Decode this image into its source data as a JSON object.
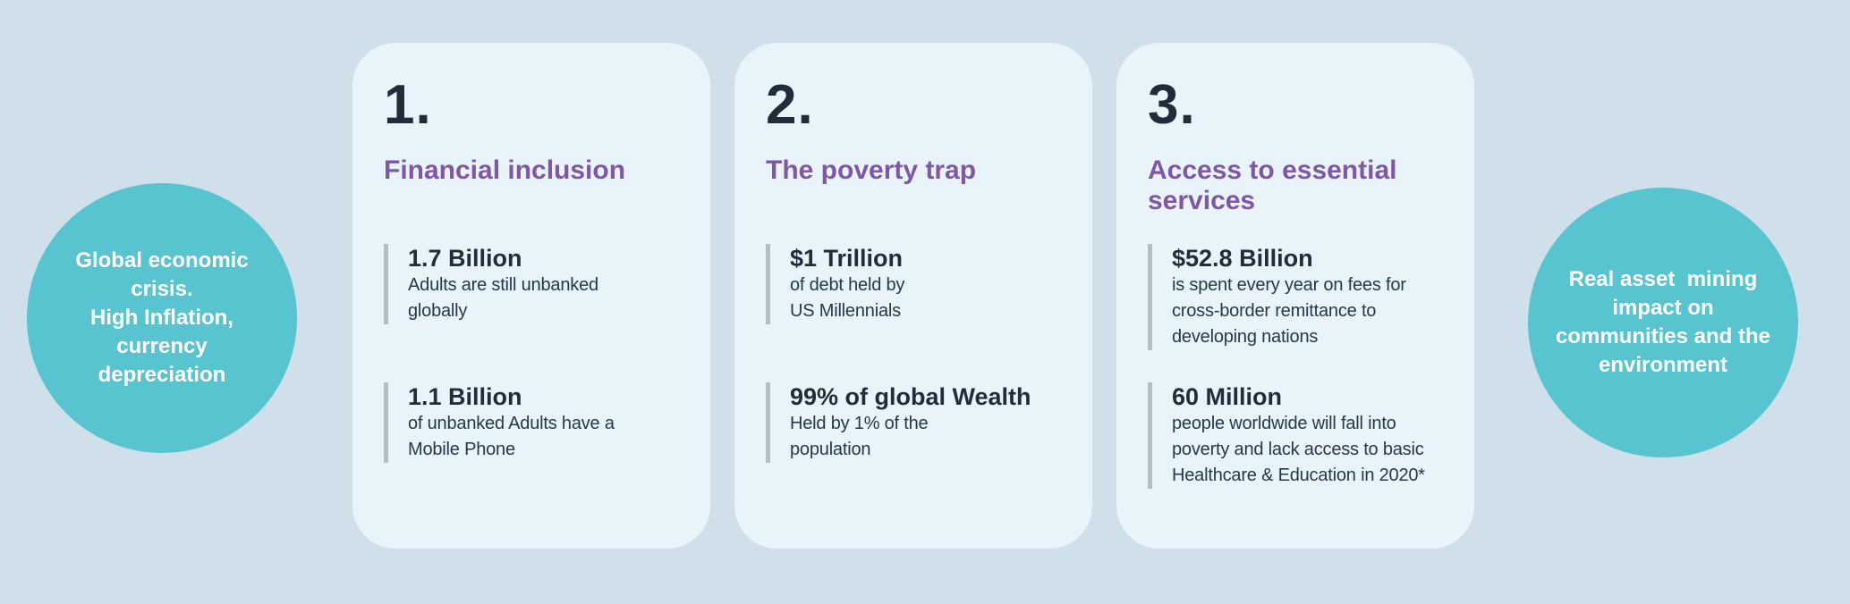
{
  "colors": {
    "background": "#cfe0eb",
    "card_background": "#e9f3fa",
    "circle_background": "#58c4cf",
    "circle_text": "#ffffff",
    "number_and_value_text": "#1f2d3a",
    "description_text": "#253849",
    "heading_purple": "#7e57a7",
    "stat_bar_gray": "#b2bdc6"
  },
  "left_circle": {
    "text": "Global economic\ncrisis.\nHigh Inflation,\ncurrency\ndepreciation"
  },
  "right_circle": {
    "text": "Real asset  mining\nimpact on\ncommunities and the\nenvironment"
  },
  "cards": [
    {
      "number": "1.",
      "title": "Financial inclusion",
      "stats": [
        {
          "value": "1.7 Billion",
          "desc": "Adults are still unbanked\nglobally"
        },
        {
          "value": "1.1 Billion",
          "desc": "of unbanked Adults have a\nMobile Phone"
        }
      ]
    },
    {
      "number": "2.",
      "title": "The poverty trap",
      "stats": [
        {
          "value": "$1 Trillion",
          "desc": "of debt held by\nUS Millennials"
        },
        {
          "value": "99% of global Wealth",
          "desc": "Held by 1% of the\npopulation"
        }
      ]
    },
    {
      "number": "3.",
      "title": "Access to essential\nservices",
      "stats": [
        {
          "value": "$52.8 Billion",
          "desc": "is spent every year on fees for\ncross-border remittance to\ndeveloping nations"
        },
        {
          "value": "60 Million",
          "desc": "people worldwide will fall into\npoverty and lack access to basic\nHealthcare & Education in 2020*"
        }
      ]
    }
  ]
}
